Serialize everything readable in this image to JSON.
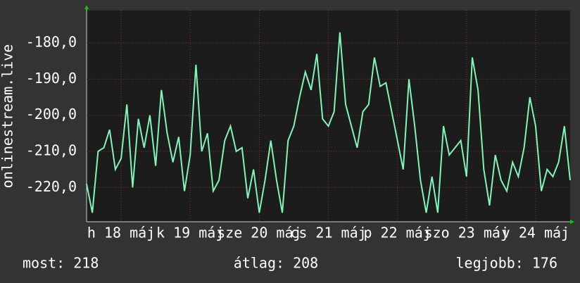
{
  "chart_data": {
    "type": "line",
    "y_label": "onlinestream.live",
    "x": [
      0,
      2,
      4,
      6,
      8,
      10,
      12,
      14,
      16,
      18,
      20,
      22,
      24,
      26,
      28,
      30,
      32,
      34,
      36,
      38,
      40,
      42,
      44,
      46,
      48,
      50,
      52,
      54,
      56,
      58,
      60,
      62,
      64,
      66,
      68,
      70,
      72,
      74,
      76,
      78,
      80,
      82,
      84,
      86,
      88,
      90,
      92,
      94,
      96,
      98,
      100,
      102,
      104,
      106,
      108,
      110,
      112,
      114,
      116,
      118,
      120,
      122,
      124,
      126,
      128,
      130,
      132,
      134,
      136,
      138,
      140,
      142,
      144,
      146,
      148,
      150,
      152,
      154,
      156,
      158,
      160,
      162,
      164,
      166,
      168
    ],
    "series": [
      {
        "name": "onlinestream.live",
        "color": "#80f5b8",
        "values": [
          -219,
          -227,
          -210,
          -209,
          -204,
          -215,
          -212,
          -197,
          -220,
          -201,
          -209,
          -200,
          -214,
          -193,
          -205,
          -213,
          -206,
          -221,
          -211,
          -186,
          -210,
          -205,
          -221,
          -218,
          -207,
          -203,
          -210,
          -209,
          -223,
          -215,
          -227,
          -218,
          -207,
          -218,
          -227,
          -207,
          -203,
          -195,
          -188,
          -193,
          -183,
          -201,
          -203,
          -199,
          -177,
          -197,
          -203,
          -209,
          -199,
          -197,
          -184,
          -192,
          -191,
          -199,
          -207,
          -215,
          -190,
          -203,
          -218,
          -227,
          -217,
          -227,
          -203,
          -211,
          -209,
          -207,
          -217,
          -184,
          -193,
          -215,
          -225,
          -211,
          -218,
          -221,
          -213,
          -217,
          -209,
          -195,
          -203,
          -221,
          -215,
          -217,
          -213,
          -203,
          -218
        ]
      }
    ],
    "xlim": [
      0,
      168
    ],
    "xticks": [
      {
        "value": 12,
        "label": "h 18 máj"
      },
      {
        "value": 36,
        "label": "k 19 máj"
      },
      {
        "value": 60,
        "label": "sze 20 máj"
      },
      {
        "value": 84,
        "label": "cs 21 máj"
      },
      {
        "value": 108,
        "label": "p 22 máj"
      },
      {
        "value": 132,
        "label": "szo 23 máj"
      },
      {
        "value": 156,
        "label": "v 24 máj"
      }
    ],
    "ylim": [
      -229.5,
      -171
    ],
    "yticks": [
      {
        "value": -220,
        "label": "-220,0"
      },
      {
        "value": -210,
        "label": "-210,0"
      },
      {
        "value": -200,
        "label": "-200,0"
      },
      {
        "value": -190,
        "label": "-190,0"
      },
      {
        "value": -180,
        "label": "-180,0"
      }
    ],
    "grid": true,
    "stats": [
      "most: 218",
      "átlag: 208",
      "legjobb: 176"
    ]
  }
}
